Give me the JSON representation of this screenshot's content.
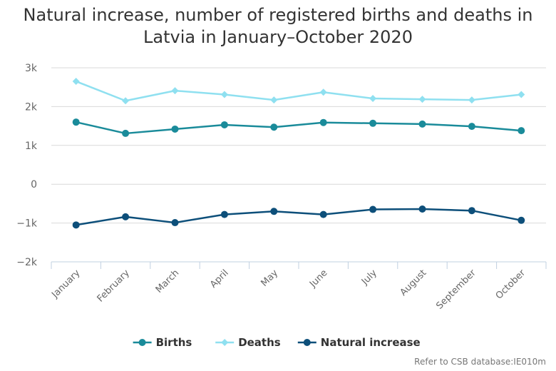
{
  "chart_data": {
    "type": "line",
    "title": "Natural increase, number of registered births and deaths in Latvia in January–October 2020",
    "title_lines": [
      "Natural increase, number of registered births and deaths in",
      "Latvia in January–October 2020"
    ],
    "categories": [
      "January",
      "February",
      "March",
      "April",
      "May",
      "June",
      "July",
      "August",
      "September",
      "October"
    ],
    "ylim": [
      -2000,
      3000
    ],
    "yticks": [
      -2000,
      -1000,
      0,
      1000,
      2000,
      3000
    ],
    "ytick_labels": [
      "−2k",
      "−1k",
      "0",
      "1k",
      "2k",
      "3k"
    ],
    "grid": true,
    "legend_position": "bottom",
    "series": [
      {
        "name": "Births",
        "color": "#1a8b9a",
        "marker": "circle",
        "values": [
          1600,
          1310,
          1420,
          1530,
          1470,
          1590,
          1570,
          1550,
          1490,
          1380
        ]
      },
      {
        "name": "Deaths",
        "color": "#8fe0f0",
        "marker": "diamond",
        "values": [
          2650,
          2150,
          2410,
          2310,
          2170,
          2370,
          2210,
          2190,
          2170,
          2310
        ]
      },
      {
        "name": "Natural increase",
        "color": "#0d4f7a",
        "marker": "circle",
        "values": [
          -1050,
          -840,
          -990,
          -780,
          -700,
          -780,
          -650,
          -640,
          -680,
          -930
        ]
      }
    ]
  },
  "credit": "Refer to CSB database:IE010m"
}
